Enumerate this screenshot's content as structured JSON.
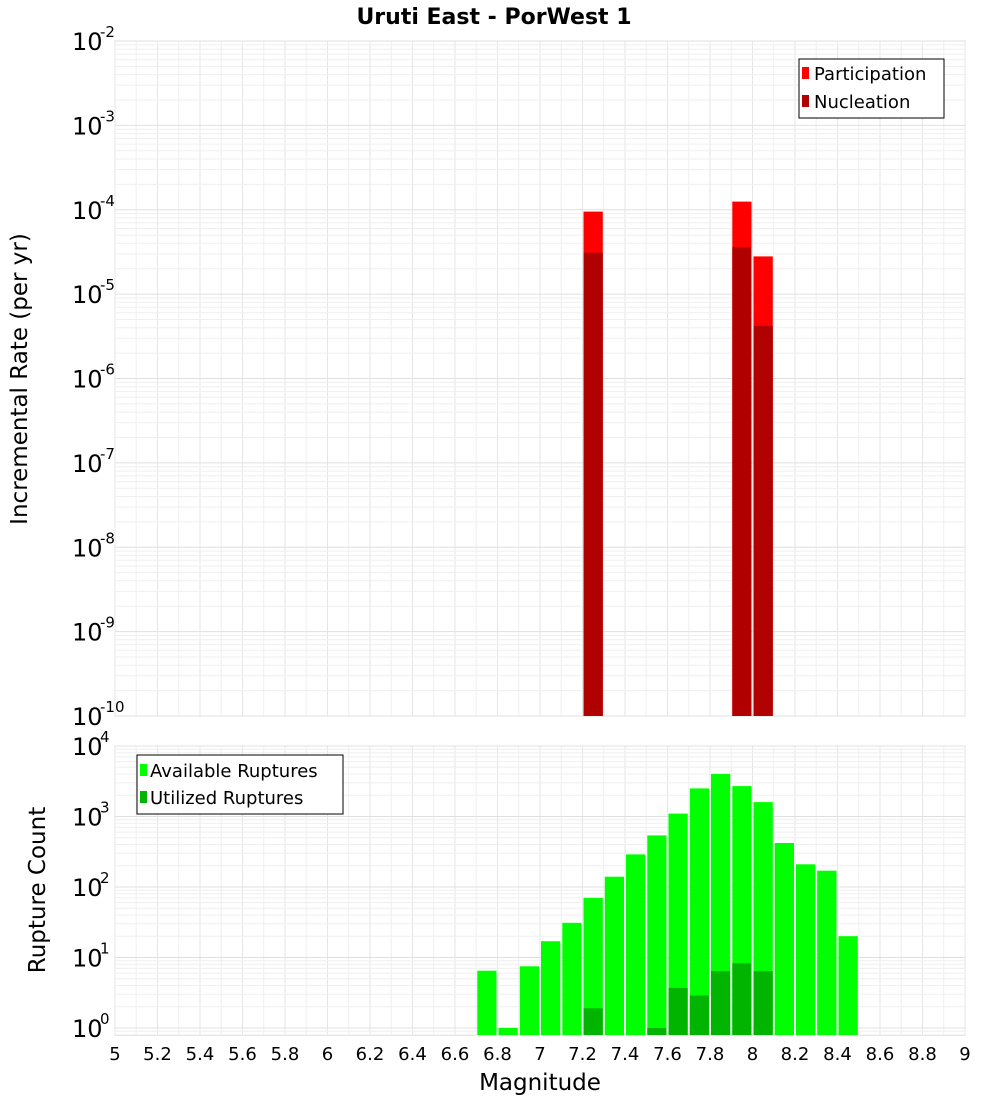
{
  "chart_data": [
    {
      "type": "bar",
      "title": "Uruti East - PorWest 1",
      "ylabel": "Incremental Rate (per yr)",
      "xlabel": "",
      "yscale": "log",
      "ylim_exp": [
        -10,
        -2
      ],
      "xlim": [
        5,
        9
      ],
      "bar_width": 0.1,
      "legend_position": "top-right",
      "series": [
        {
          "name": "Participation",
          "color": "#ff0000",
          "x": [
            7.25,
            7.95,
            8.05
          ],
          "values": [
            9.5e-05,
            0.000125,
            2.8e-05
          ]
        },
        {
          "name": "Nucleation",
          "color": "#b00000",
          "x": [
            7.25,
            7.95,
            8.05
          ],
          "values": [
            3.1e-05,
            3.6e-05,
            4.2e-06
          ]
        }
      ]
    },
    {
      "type": "bar",
      "title": "",
      "ylabel": "Rupture Count",
      "xlabel": "Magnitude",
      "yscale": "log",
      "ylim_exp": [
        -0.1,
        4
      ],
      "xlim": [
        5,
        9
      ],
      "bar_width": 0.1,
      "legend_position": "top-left",
      "x_ticks": [
        "5",
        "5.2",
        "5.4",
        "5.6",
        "5.8",
        "6",
        "6.2",
        "6.4",
        "6.6",
        "6.8",
        "7",
        "7.2",
        "7.4",
        "7.6",
        "7.8",
        "8",
        "8.2",
        "8.4",
        "8.6",
        "8.8",
        "9"
      ],
      "series": [
        {
          "name": "Available Ruptures",
          "color": "#00ff00",
          "x": [
            6.75,
            6.85,
            6.95,
            7.05,
            7.15,
            7.25,
            7.35,
            7.45,
            7.55,
            7.65,
            7.75,
            7.85,
            7.95,
            8.05,
            8.15,
            8.25,
            8.35,
            8.45
          ],
          "values": [
            6.5,
            1.0,
            7.5,
            17,
            31,
            70,
            140,
            290,
            540,
            1100,
            2500,
            4000,
            2700,
            1600,
            420,
            210,
            170,
            20
          ]
        },
        {
          "name": "Utilized Ruptures",
          "color": "#00b400",
          "x": [
            7.25,
            7.55,
            7.65,
            7.75,
            7.85,
            7.95,
            8.05
          ],
          "values": [
            1.9,
            1.0,
            3.7,
            2.9,
            6.4,
            8.3,
            6.4
          ]
        }
      ]
    }
  ]
}
